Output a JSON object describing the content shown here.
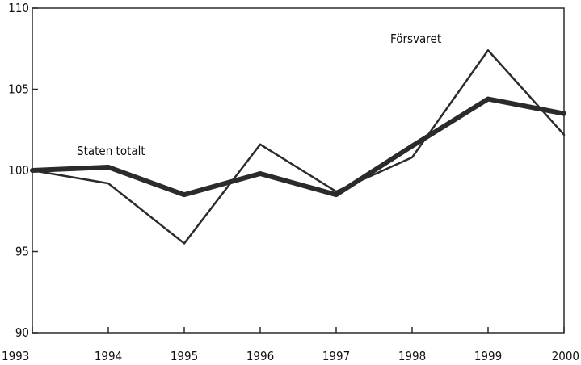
{
  "chart_data": {
    "type": "line",
    "title": "",
    "xlabel": "",
    "ylabel": "",
    "x": [
      1993,
      1994,
      1995,
      1996,
      1997,
      1998,
      1999,
      2000
    ],
    "x_tick_labels": [
      "1993",
      "1994",
      "1995",
      "1996",
      "1997",
      "1998",
      "1999",
      "2000"
    ],
    "ylim": [
      90,
      110
    ],
    "y_ticks": [
      90,
      95,
      100,
      105,
      110
    ],
    "y_tick_labels": [
      "90",
      "95",
      "100",
      "105",
      "110"
    ],
    "grid": false,
    "series": [
      {
        "name": "Staten totalt",
        "values": [
          100,
          100.2,
          98.5,
          99.8,
          98.5,
          101.5,
          104.4,
          103.5
        ],
        "color": "#2b2b2b",
        "line_style": "thick"
      },
      {
        "name": "Försvaret",
        "values": [
          100,
          99.2,
          95.5,
          101.6,
          98.7,
          100.8,
          107.4,
          102.2
        ],
        "color": "#2b2b2b",
        "line_style": "thin"
      }
    ],
    "annotations": [
      "Staten totalt",
      "Försvaret"
    ]
  }
}
